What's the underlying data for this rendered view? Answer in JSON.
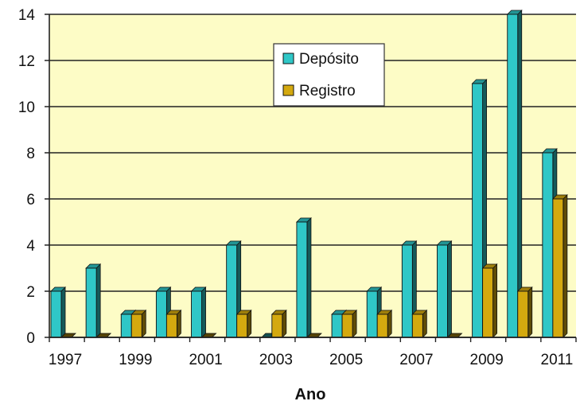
{
  "chart_data": {
    "type": "bar",
    "xlabel": "Ano",
    "ylabel": "",
    "title": "",
    "ylim": [
      0,
      14
    ],
    "yticks": [
      0,
      2,
      4,
      6,
      8,
      10,
      12,
      14
    ],
    "categories": [
      "1997",
      "1998",
      "1999",
      "2000",
      "2001",
      "2002",
      "2003",
      "2004",
      "2005",
      "2006",
      "2007",
      "2008",
      "2009",
      "2010",
      "2011"
    ],
    "x_tick_labels": [
      "1997",
      "1999",
      "2001",
      "2003",
      "2005",
      "2007",
      "2009",
      "2011"
    ],
    "series": [
      {
        "name": "Depósito",
        "color": "#2fc7c7",
        "values": [
          2,
          3,
          1,
          2,
          2,
          4,
          0,
          5,
          1,
          2,
          4,
          4,
          11,
          14,
          8
        ]
      },
      {
        "name": "Registro",
        "color": "#d4a90f",
        "values": [
          0,
          0,
          1,
          1,
          0,
          1,
          1,
          0,
          1,
          1,
          1,
          0,
          3,
          2,
          6
        ]
      }
    ],
    "grid": true,
    "legend_position": "top-center",
    "plot_background": "#fdfcc6"
  }
}
